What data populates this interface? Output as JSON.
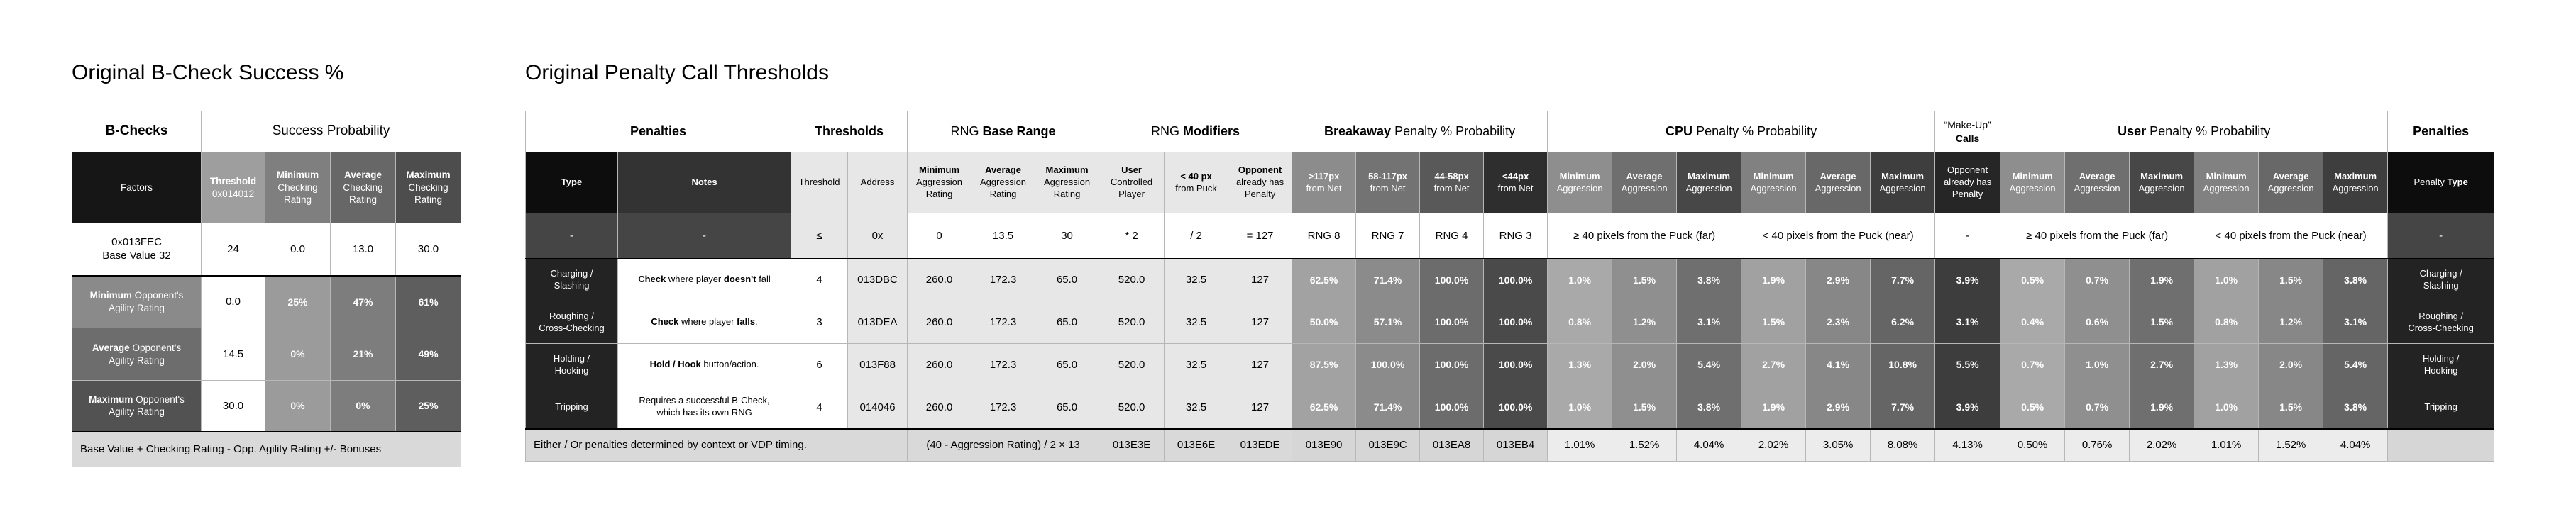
{
  "palette": {
    "header_black": "#0d0d0d",
    "notes_header_gray": "#333333",
    "type_cell_dark": "#232323",
    "light_cell": "#e7e7e7",
    "footer_gray": "#d9d9d9",
    "breakaway_header_grays": [
      "#8c8c8c",
      "#737373",
      "#595959",
      "#2e2e2e"
    ],
    "makeup_header_dark": "#262626"
  },
  "left_table": {
    "title": "Original B-Check Success %",
    "header": {
      "b_checks": "B-Checks",
      "success_probability": "Success Probability"
    },
    "columns": {
      "factors": "Factors",
      "threshold": "**Threshold**\n0x014012",
      "min": "**Minimum**\nChecking\nRating",
      "avg": "**Average**\nChecking\nRating",
      "max": "**Maximum**\nChecking\nRating"
    },
    "base_row": {
      "factor": "0x013FEC\nBase Value 32",
      "threshold": "24",
      "min": "0.0",
      "avg": "13.0",
      "max": "30.0"
    },
    "rows": [
      {
        "factor": "**Minimum** Opponent's\nAgility Rating",
        "threshold": "0.0",
        "min": "25%",
        "avg": "47%",
        "max": "61%"
      },
      {
        "factor": "**Average** Opponent's\nAgility Rating",
        "threshold": "14.5",
        "min": "0%",
        "avg": "21%",
        "max": "49%"
      },
      {
        "factor": "**Maximum** Opponent's\nAgility Rating",
        "threshold": "30.0",
        "min": "0%",
        "avg": "0%",
        "max": "25%"
      }
    ],
    "footer": "Base Value + Checking Rating - Opp. Agility Rating +/- Bonuses"
  },
  "right_table": {
    "title": "Original Penalty Call Thresholds",
    "groups": {
      "penalties": "**Penalties**",
      "thresholds": "**Thresholds**",
      "rng_base": "RNG **Base Range**",
      "rng_mods": "RNG **Modifiers**",
      "breakaway": "**Breakaway** Penalty % Probability",
      "cpu": "**CPU** Penalty % Probability",
      "makeup": "“Make-Up”\n**Calls**",
      "user": "**User** Penalty % Probability",
      "penalties2": "**Penalties**"
    },
    "sub": {
      "type": "Type",
      "notes": "Notes",
      "threshold": "Threshold",
      "address": "Address",
      "min_aggr_rating": "**Minimum**\nAggression\nRating",
      "avg_aggr_rating": "**Average**\nAggression\nRating",
      "max_aggr_rating": "**Maximum**\nAggression\nRating",
      "user_controlled": "**User**\nControlled\nPlayer",
      "lt40": "**< 40 px**\nfrom Puck",
      "opp_penalty": "**Opponent**\nalready has\nPenalty",
      "bw": [
        "**>117px**\nfrom Net",
        "**58-117px**\nfrom Net",
        "**44-58px**\nfrom Net",
        "**<44px**\nfrom Net"
      ],
      "aggr": [
        "**Minimum**\nAggression",
        "**Average**\nAggression",
        "**Maximum**\nAggression"
      ],
      "makeup_sub": "Opponent\nalready has\nPenalty",
      "penalty_type": "Penalty **Type**"
    },
    "formula_row": {
      "type": "-",
      "notes": "-",
      "threshold": "≤",
      "address": "0x",
      "rng": [
        "0",
        "13.5",
        "30"
      ],
      "mods": [
        "* 2",
        "/ 2",
        "= 127"
      ],
      "breakaway": [
        "RNG 8",
        "RNG 7",
        "RNG 4",
        "RNG 3"
      ],
      "cpu_far": "≥ 40 pixels from the Puck (far)",
      "cpu_near": "< 40 pixels from the Puck (near)",
      "makeup": "-",
      "user_far": "≥ 40 pixels from the Puck (far)",
      "user_near": "< 40 pixels from the Puck (near)",
      "penalty_type": "-"
    },
    "rows": [
      {
        "type": "Charging /\nSlashing",
        "notes": "**Check** where player **doesn't** fall",
        "threshold": "4",
        "address": "013DBC",
        "rng": [
          "260.0",
          "172.3",
          "65.0"
        ],
        "mods": [
          "520.0",
          "32.5",
          "127"
        ],
        "breakaway": [
          "62.5%",
          "71.4%",
          "100.0%",
          "100.0%"
        ],
        "cpu": [
          "1.0%",
          "1.5%",
          "3.8%",
          "1.9%",
          "2.9%",
          "7.7%"
        ],
        "makeup": "3.9%",
        "user": [
          "0.5%",
          "0.7%",
          "1.9%",
          "1.0%",
          "1.5%",
          "3.8%"
        ],
        "penalty_type": "Charging /\nSlashing"
      },
      {
        "type": "Roughing /\nCross-Checking",
        "notes": "**Check** where player **falls**.",
        "threshold": "3",
        "address": "013DEA",
        "rng": [
          "260.0",
          "172.3",
          "65.0"
        ],
        "mods": [
          "520.0",
          "32.5",
          "127"
        ],
        "breakaway": [
          "50.0%",
          "57.1%",
          "100.0%",
          "100.0%"
        ],
        "cpu": [
          "0.8%",
          "1.2%",
          "3.1%",
          "1.5%",
          "2.3%",
          "6.2%"
        ],
        "makeup": "3.1%",
        "user": [
          "0.4%",
          "0.6%",
          "1.5%",
          "0.8%",
          "1.2%",
          "3.1%"
        ],
        "penalty_type": "Roughing /\nCross-Checking"
      },
      {
        "type": "Holding /\nHooking",
        "notes": "**Hold / Hook** button/action.",
        "threshold": "6",
        "address": "013F88",
        "rng": [
          "260.0",
          "172.3",
          "65.0"
        ],
        "mods": [
          "520.0",
          "32.5",
          "127"
        ],
        "breakaway": [
          "87.5%",
          "100.0%",
          "100.0%",
          "100.0%"
        ],
        "cpu": [
          "1.3%",
          "2.0%",
          "5.4%",
          "2.7%",
          "4.1%",
          "10.8%"
        ],
        "makeup": "5.5%",
        "user": [
          "0.7%",
          "1.0%",
          "2.7%",
          "1.3%",
          "2.0%",
          "5.4%"
        ],
        "penalty_type": "Holding /\nHooking"
      },
      {
        "type": "Tripping",
        "notes": "Requires a successful B-Check,\nwhich has its own RNG",
        "threshold": "4",
        "address": "014046",
        "rng": [
          "260.0",
          "172.3",
          "65.0"
        ],
        "mods": [
          "520.0",
          "32.5",
          "127"
        ],
        "breakaway": [
          "62.5%",
          "71.4%",
          "100.0%",
          "100.0%"
        ],
        "cpu": [
          "1.0%",
          "1.5%",
          "3.8%",
          "1.9%",
          "2.9%",
          "7.7%"
        ],
        "makeup": "3.9%",
        "user": [
          "0.5%",
          "0.7%",
          "1.9%",
          "1.0%",
          "1.5%",
          "3.8%"
        ],
        "penalty_type": "Tripping"
      }
    ],
    "footer_row": {
      "note": "Either / Or penalties determined by context or VDP timing.",
      "formula": "(40 - Aggression Rating) / 2 × 13",
      "mods": [
        "013E3E",
        "013E6E",
        "013EDE"
      ],
      "breakaway": [
        "013E90",
        "013E9C",
        "013EA8",
        "013EB4"
      ],
      "cpu": [
        "1.01%",
        "1.52%",
        "4.04%",
        "2.02%",
        "3.05%",
        "8.08%"
      ],
      "makeup": "4.13%",
      "user": [
        "0.50%",
        "0.76%",
        "2.02%",
        "1.01%",
        "1.52%",
        "4.04%"
      ],
      "penalty_type": ""
    }
  }
}
